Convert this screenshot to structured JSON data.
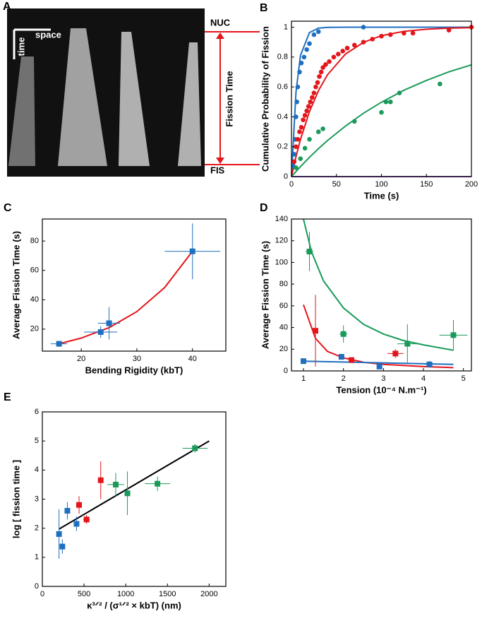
{
  "kymograph": {
    "label": "A",
    "scale_time": "time",
    "scale_space": "space",
    "top": "NUC",
    "bottom": "FIS",
    "span": "Fission Time"
  },
  "chart_data": [
    {
      "type": "scatter",
      "label": "B",
      "xlabel": "Time (s)",
      "ylabel": "Cumulative Probability of Fission",
      "marker": "circle",
      "xlim": [
        0,
        200
      ],
      "ylim": [
        0,
        1.04
      ],
      "xticks": [
        0,
        50,
        100,
        150,
        200
      ],
      "yticks": [
        0,
        0.2,
        0.4,
        0.6,
        0.8,
        1
      ],
      "series": [
        {
          "color": "#1f6fc0",
          "x": [
            2,
            3,
            4,
            5,
            6,
            7,
            9,
            11,
            14,
            17,
            20,
            25,
            30,
            80
          ],
          "values": [
            0.07,
            0.15,
            0.25,
            0.4,
            0.5,
            0.6,
            0.7,
            0.76,
            0.8,
            0.85,
            0.89,
            0.95,
            0.97,
            1.0
          ]
        },
        {
          "color": "#e4151b",
          "x": [
            3,
            5,
            7,
            9,
            11,
            13,
            15,
            17,
            19,
            21,
            23,
            25,
            27,
            29,
            31,
            33,
            35,
            38,
            42,
            47,
            52,
            57,
            62,
            70,
            80,
            90,
            100,
            110,
            125,
            135,
            175,
            200
          ],
          "values": [
            0.1,
            0.2,
            0.25,
            0.3,
            0.33,
            0.38,
            0.41,
            0.44,
            0.47,
            0.5,
            0.53,
            0.56,
            0.6,
            0.63,
            0.67,
            0.7,
            0.73,
            0.75,
            0.77,
            0.8,
            0.82,
            0.84,
            0.86,
            0.88,
            0.9,
            0.92,
            0.94,
            0.95,
            0.96,
            0.96,
            0.98,
            1.0
          ]
        },
        {
          "color": "#1a9a5a",
          "x": [
            5,
            10,
            15,
            20,
            30,
            35,
            70,
            100,
            105,
            110,
            120,
            165
          ],
          "values": [
            0.06,
            0.12,
            0.19,
            0.25,
            0.3,
            0.32,
            0.37,
            0.43,
            0.5,
            0.5,
            0.56,
            0.62
          ]
        }
      ],
      "fits": [
        {
          "color": "#1f6fc0",
          "x": [
            0,
            5,
            10,
            20,
            30,
            40,
            60,
            80,
            100,
            125,
            150,
            175,
            200
          ],
          "values": [
            0,
            0.565,
            0.811,
            0.964,
            0.993,
            0.999,
            1,
            1,
            1,
            1,
            1,
            1,
            1
          ]
        },
        {
          "color": "#e4151b",
          "x": [
            0,
            5,
            10,
            20,
            30,
            40,
            60,
            80,
            100,
            125,
            150,
            175,
            200
          ],
          "values": [
            0,
            0.133,
            0.249,
            0.435,
            0.576,
            0.681,
            0.82,
            0.898,
            0.943,
            0.972,
            0.986,
            0.993,
            0.997
          ]
        },
        {
          "color": "#1a9a5a",
          "x": [
            0,
            5,
            10,
            20,
            30,
            40,
            60,
            80,
            100,
            125,
            150,
            175,
            200
          ],
          "values": [
            0,
            0.034,
            0.067,
            0.129,
            0.187,
            0.241,
            0.338,
            0.424,
            0.498,
            0.578,
            0.644,
            0.701,
            0.748
          ]
        },
        {
          "color": "#8a4fc0",
          "x": [
            0,
            200
          ],
          "values": [
            0,
            0
          ]
        }
      ]
    },
    {
      "type": "scatter",
      "label": "C",
      "xlabel": "Bending Rigidity (kbT)",
      "ylabel": "Average Fission Time (s)",
      "marker": "square",
      "xlim": [
        13,
        46
      ],
      "ylim": [
        5,
        95
      ],
      "xticks": [
        20,
        30,
        40
      ],
      "yticks": [
        20,
        40,
        60,
        80
      ],
      "series": [
        {
          "color": "#1f6fc0",
          "x": [
            16,
            23.5,
            25,
            40
          ],
          "values": [
            10,
            18,
            24,
            73
          ],
          "x_errors": [
            1.5,
            3,
            2,
            5
          ],
          "errors": [
            1.5,
            4,
            11,
            19
          ]
        }
      ],
      "fits": [
        {
          "color": "#e4151b",
          "x": [
            16,
            20,
            25,
            30,
            35,
            40
          ],
          "values": [
            10,
            13.9,
            21,
            31.9,
            48.3,
            73
          ]
        }
      ]
    },
    {
      "type": "scatter",
      "label": "D",
      "xlabel": "Tension (10⁻⁴ N.m⁻¹)",
      "ylabel": "Average Fission Time (s)",
      "marker": "square",
      "xlim": [
        0.7,
        5.2
      ],
      "ylim": [
        0,
        140
      ],
      "xticks": [
        1,
        2,
        3,
        4,
        5
      ],
      "yticks": [
        0,
        20,
        40,
        60,
        80,
        100,
        120,
        140
      ],
      "series": [
        {
          "color": "#1a9a5a",
          "x": [
            1.15,
            2,
            3.6,
            4.75
          ],
          "values": [
            110,
            34,
            25,
            33
          ],
          "x_errors": [
            0.1,
            0.1,
            0.25,
            0.35
          ],
          "errors": [
            18,
            8,
            18,
            14
          ]
        },
        {
          "color": "#e4151b",
          "x": [
            1.3,
            2.2,
            3.3
          ],
          "values": [
            37,
            10,
            16
          ],
          "x_errors": [
            0.05,
            0.05,
            0.2
          ],
          "errors": [
            33,
            2,
            4
          ]
        },
        {
          "color": "#1f6fc0",
          "x": [
            1,
            1.95,
            2.9,
            4.15
          ],
          "values": [
            9,
            13,
            4,
            6
          ],
          "x_errors": [
            0.05,
            0.05,
            0.05,
            0.1
          ],
          "errors": [
            1,
            2,
            2,
            3
          ]
        }
      ],
      "fits": [
        {
          "color": "#1a9a5a",
          "x": [
            1,
            1.2,
            1.5,
            2,
            2.5,
            3,
            3.5,
            4,
            4.75
          ],
          "values": [
            140,
            110,
            83,
            58,
            43,
            34,
            28,
            24,
            19
          ]
        },
        {
          "color": "#e4151b",
          "x": [
            1,
            1.3,
            1.6,
            2,
            2.5,
            3,
            3.5,
            4,
            4.75
          ],
          "values": [
            61,
            30,
            18,
            12,
            8,
            6,
            5,
            4,
            3
          ]
        },
        {
          "color": "#1f6fc0",
          "x": [
            1,
            4.75
          ],
          "values": [
            9,
            6
          ]
        }
      ]
    },
    {
      "type": "scatter",
      "label": "E",
      "xlabel": "κ³ᐟ² / (σ¹ᐟ² × kbT) (nm)",
      "ylabel": "log [ fission time ]",
      "marker": "square",
      "xlim": [
        0,
        2200
      ],
      "ylim": [
        0,
        6
      ],
      "xticks": [
        0,
        500,
        1000,
        1500,
        2000
      ],
      "yticks": [
        0,
        1,
        2,
        3,
        4,
        5,
        6
      ],
      "series": [
        {
          "color": "#1f6fc0",
          "x": [
            200,
            240,
            300,
            410
          ],
          "values": [
            1.8,
            1.37,
            2.6,
            2.15
          ],
          "x_errors": [
            15,
            15,
            20,
            20
          ],
          "errors": [
            0.85,
            0.25,
            0.3,
            0.25
          ]
        },
        {
          "color": "#e4151b",
          "x": [
            440,
            530,
            700
          ],
          "values": [
            2.8,
            2.3,
            3.65
          ],
          "x_errors": [
            20,
            40,
            30
          ],
          "errors": [
            0.3,
            0.15,
            0.65
          ]
        },
        {
          "color": "#1a9a5a",
          "x": [
            880,
            1020,
            1380,
            1830
          ],
          "values": [
            3.5,
            3.2,
            3.53,
            4.75
          ],
          "x_errors": [
            100,
            30,
            150,
            150
          ],
          "errors": [
            0.4,
            0.75,
            0.25,
            0.15
          ]
        }
      ],
      "fits": [
        {
          "color": "#000000",
          "x": [
            200,
            2000
          ],
          "values": [
            1.97,
            5.0
          ]
        }
      ]
    }
  ]
}
